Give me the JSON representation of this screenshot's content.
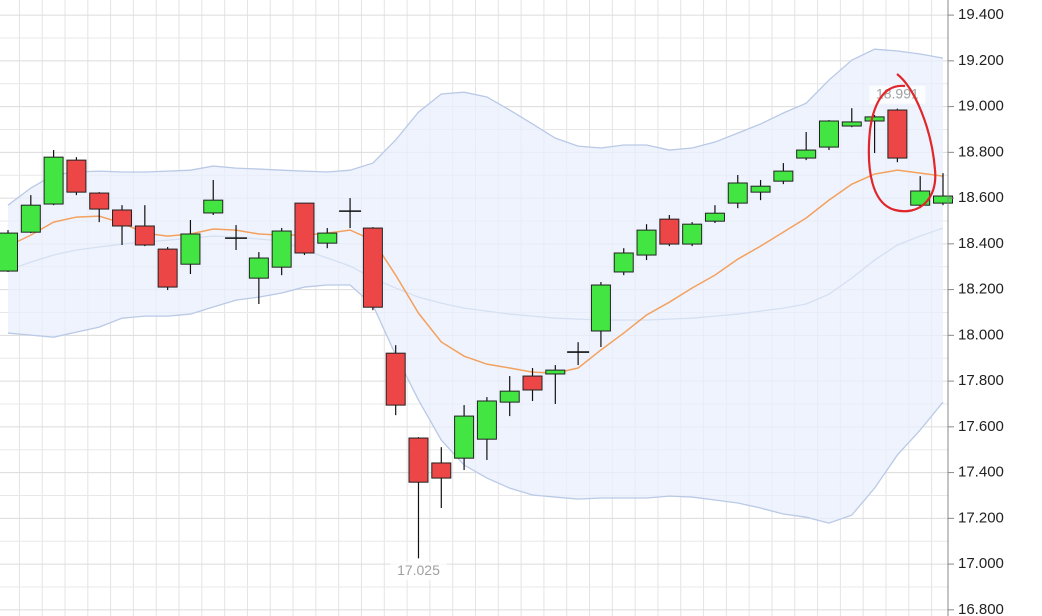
{
  "chart_data": {
    "type": "candlestick",
    "open": [
      18.281,
      18.451,
      18.574,
      18.766,
      18.622,
      18.548,
      18.478,
      18.377,
      18.311,
      18.535,
      18.425,
      18.25,
      18.298,
      18.578,
      18.403,
      18.543,
      18.469,
      17.922,
      17.551,
      17.442,
      17.463,
      17.546,
      17.708,
      17.822,
      17.831,
      17.927,
      18.019,
      18.277,
      18.351,
      18.508,
      18.399,
      18.499,
      18.578,
      18.626,
      18.674,
      18.775,
      18.823,
      18.915,
      18.937,
      18.985,
      18.569,
      18.578
    ],
    "high": [
      18.46,
      18.613,
      18.81,
      18.779,
      18.626,
      18.569,
      18.569,
      18.386,
      18.504,
      18.679,
      18.482,
      18.364,
      18.469,
      18.578,
      18.469,
      18.6,
      18.473,
      17.957,
      17.555,
      17.511,
      17.695,
      17.73,
      17.822,
      17.857,
      17.87,
      17.97,
      18.233,
      18.381,
      18.486,
      18.526,
      18.495,
      18.569,
      18.701,
      18.679,
      18.753,
      18.889,
      18.941,
      18.993,
      18.963,
      18.991,
      18.696,
      18.709
    ],
    "low": [
      18.277,
      18.447,
      18.569,
      18.613,
      18.495,
      18.395,
      18.39,
      18.198,
      18.268,
      18.526,
      18.373,
      18.137,
      18.263,
      18.351,
      18.381,
      18.469,
      18.11,
      17.651,
      17.025,
      17.245,
      17.411,
      17.455,
      17.647,
      17.713,
      17.7,
      17.87,
      17.949,
      18.263,
      18.329,
      18.39,
      18.39,
      18.491,
      18.556,
      18.591,
      18.661,
      18.766,
      18.81,
      18.91,
      18.797,
      18.757,
      18.556,
      18.569
    ],
    "close": [
      18.447,
      18.569,
      18.779,
      18.626,
      18.552,
      18.478,
      18.395,
      18.211,
      18.443,
      18.591,
      18.425,
      18.338,
      18.456,
      18.36,
      18.447,
      18.543,
      18.123,
      17.695,
      17.358,
      17.376,
      17.647,
      17.713,
      17.756,
      17.761,
      17.848,
      17.927,
      18.22,
      18.36,
      18.46,
      18.399,
      18.486,
      18.534,
      18.666,
      18.652,
      18.718,
      18.81,
      18.937,
      18.933,
      18.955,
      18.775,
      18.631,
      18.609
    ],
    "bands": {
      "upper": [
        18.569,
        18.644,
        18.701,
        18.714,
        18.718,
        18.714,
        18.714,
        18.718,
        18.722,
        18.74,
        18.731,
        18.727,
        18.722,
        18.718,
        18.714,
        18.722,
        18.753,
        18.854,
        18.976,
        19.055,
        19.063,
        19.042,
        18.985,
        18.924,
        18.862,
        18.827,
        18.819,
        18.832,
        18.832,
        18.81,
        18.819,
        18.845,
        18.884,
        18.924,
        18.972,
        19.015,
        19.116,
        19.203,
        19.251,
        19.243,
        19.23,
        19.212
      ],
      "lower": [
        18.01,
        18.001,
        17.992,
        18.014,
        18.036,
        18.075,
        18.084,
        18.084,
        18.093,
        18.124,
        18.154,
        18.167,
        18.185,
        18.211,
        18.22,
        18.22,
        18.132,
        17.914,
        17.717,
        17.542,
        17.433,
        17.376,
        17.332,
        17.302,
        17.293,
        17.284,
        17.289,
        17.289,
        17.289,
        17.297,
        17.293,
        17.28,
        17.267,
        17.245,
        17.219,
        17.205,
        17.179,
        17.214,
        17.332,
        17.477,
        17.586,
        17.708
      ],
      "middle": [
        18.39,
        18.438,
        18.495,
        18.517,
        18.521,
        18.491,
        18.447,
        18.434,
        18.443,
        18.465,
        18.46,
        18.443,
        18.438,
        18.438,
        18.447,
        18.46,
        18.416,
        18.263,
        18.097,
        17.971,
        17.909,
        17.874,
        17.857,
        17.839,
        17.835,
        17.857,
        17.936,
        18.01,
        18.089,
        18.145,
        18.207,
        18.263,
        18.333,
        18.39,
        18.451,
        18.513,
        18.591,
        18.661,
        18.705,
        18.722,
        18.709,
        18.696
      ],
      "inner": [
        18.285,
        18.32,
        18.351,
        18.373,
        18.386,
        18.399,
        18.408,
        18.416,
        18.425,
        18.434,
        18.43,
        18.421,
        18.412,
        18.373,
        18.338,
        18.303,
        18.25,
        18.207,
        18.167,
        18.141,
        18.119,
        18.106,
        18.093,
        18.084,
        18.075,
        18.071,
        18.067,
        18.067,
        18.067,
        18.071,
        18.075,
        18.084,
        18.093,
        18.106,
        18.119,
        18.137,
        18.18,
        18.25,
        18.329,
        18.395,
        18.434,
        18.469
      ]
    },
    "colors": {
      "up": "#43e543",
      "down": "#ec4646",
      "band_fill": "#e9effc",
      "band_line": "#b9c9e6",
      "middle": "#f3a15e",
      "inner": "#d5e0f2"
    },
    "annotations": [
      {
        "value": 17.025,
        "label": "17.025"
      },
      {
        "value": 18.991,
        "label": "18.991"
      }
    ],
    "ylim": [
      16.773,
      19.466
    ],
    "yticks": [
      {
        "value": 16.8,
        "label": "16.800"
      },
      {
        "value": 17.0,
        "label": "17.000"
      },
      {
        "value": 17.2,
        "label": "17.200"
      },
      {
        "value": 17.4,
        "label": "17.400"
      },
      {
        "value": 17.6,
        "label": "17.600"
      },
      {
        "value": 17.8,
        "label": "17.800"
      },
      {
        "value": 18.0,
        "label": "18.000"
      },
      {
        "value": 18.2,
        "label": "18.200"
      },
      {
        "value": 18.4,
        "label": "18.400"
      },
      {
        "value": 18.6,
        "label": "18.600"
      },
      {
        "value": 18.8,
        "label": "18.800"
      },
      {
        "value": 19.0,
        "label": "19.000"
      },
      {
        "value": 19.2,
        "label": "19.200"
      },
      {
        "value": 19.4,
        "label": "19.400"
      }
    ],
    "grid": true
  }
}
